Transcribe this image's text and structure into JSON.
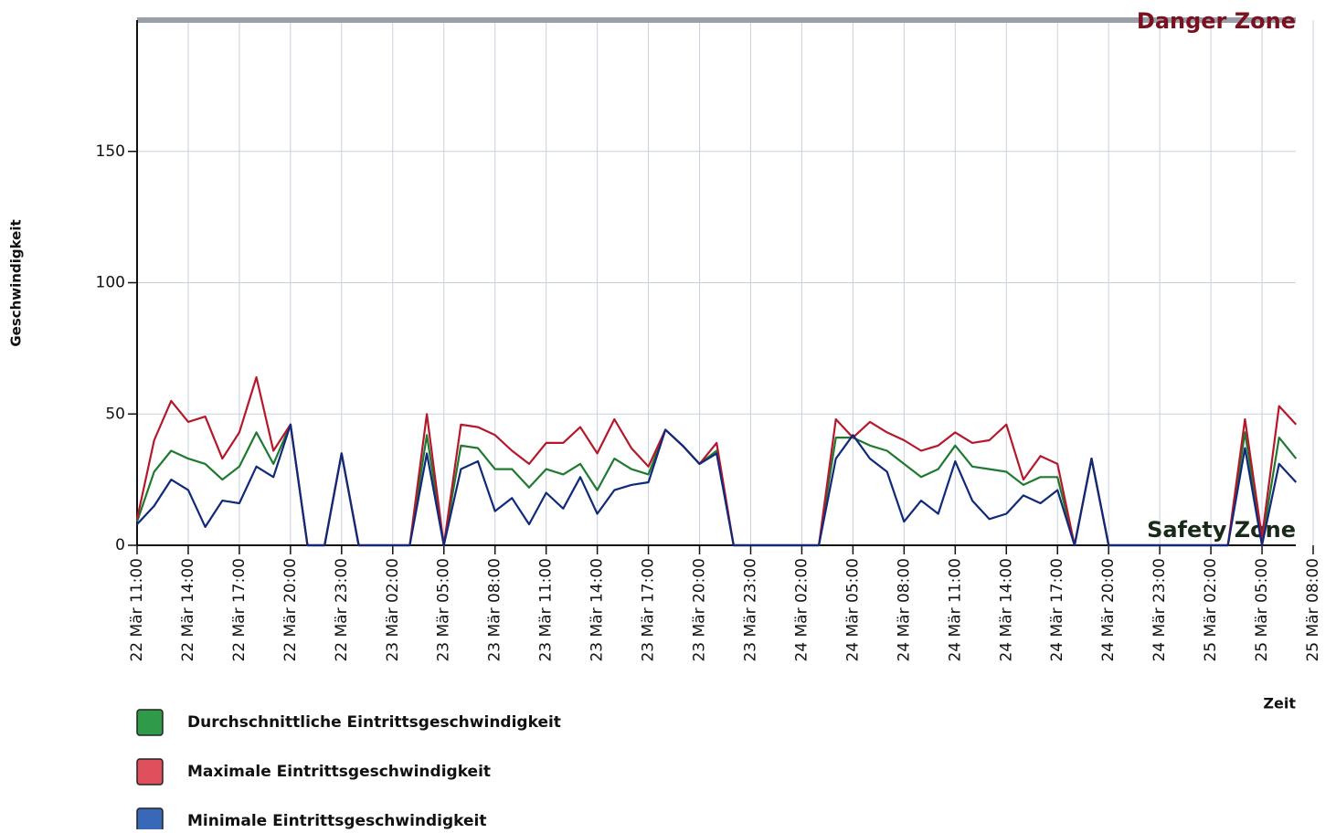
{
  "chart_data": {
    "type": "line",
    "y_label": "Geschwindigkeit",
    "x_label": "Zeit",
    "categories": [
      "22 Mär 11:00",
      null,
      null,
      "22 Mär 14:00",
      null,
      null,
      "22 Mär 17:00",
      null,
      null,
      "22 Mär 20:00",
      null,
      null,
      "22 Mär 23:00",
      null,
      null,
      "23 Mär 02:00",
      null,
      null,
      "23 Mär 05:00",
      null,
      null,
      "23 Mär 08:00",
      null,
      null,
      "23 Mär 11:00",
      null,
      null,
      "23 Mär 14:00",
      null,
      null,
      "23 Mär 17:00",
      null,
      null,
      "23 Mär 20:00",
      null,
      null,
      "23 Mär 23:00",
      null,
      null,
      "24 Mär 02:00",
      null,
      null,
      "24 Mär 05:00",
      null,
      null,
      "24 Mär 08:00",
      null,
      null,
      "24 Mär 11:00",
      null,
      null,
      "24 Mär 14:00",
      null,
      null,
      "24 Mär 17:00",
      null,
      null,
      "24 Mär 20:00",
      null,
      null,
      "24 Mär 23:00",
      null,
      null,
      "25 Mär 02:00",
      null,
      null,
      "25 Mär 05:00",
      null,
      null,
      "25 Mär 08:00"
    ],
    "series": [
      {
        "name": "Durchschnittliche Eintrittsgeschwindigkeit",
        "color": "#1f7a30",
        "swatch": "#2f9a48",
        "values": [
          9,
          28,
          36,
          33,
          31,
          25,
          30,
          43,
          31,
          46,
          0,
          0,
          35,
          0,
          0,
          0,
          0,
          42,
          0,
          38,
          37,
          29,
          29,
          22,
          29,
          27,
          31,
          21,
          33,
          29,
          27,
          44,
          38,
          31,
          36,
          0,
          0,
          0,
          0,
          0,
          0,
          41,
          41,
          38,
          36,
          31,
          26,
          29,
          38,
          30,
          29,
          28,
          23,
          26,
          26,
          0,
          33,
          0,
          0,
          0,
          0,
          0,
          0,
          0,
          0,
          43,
          1,
          41,
          33,
          null
        ]
      },
      {
        "name": "Maximale Eintrittsgeschwindigkeit",
        "color": "#b5182b",
        "swatch": "#e0505c",
        "values": [
          10,
          40,
          55,
          47,
          49,
          33,
          43,
          64,
          36,
          46,
          0,
          0,
          35,
          0,
          0,
          0,
          0,
          50,
          0,
          46,
          45,
          42,
          36,
          31,
          39,
          39,
          45,
          35,
          48,
          37,
          30,
          44,
          38,
          31,
          39,
          0,
          0,
          0,
          0,
          0,
          0,
          48,
          41,
          47,
          43,
          40,
          36,
          38,
          43,
          39,
          40,
          46,
          25,
          34,
          31,
          0,
          33,
          0,
          0,
          0,
          0,
          0,
          0,
          0,
          0,
          48,
          3,
          53,
          46,
          null
        ]
      },
      {
        "name": "Minimale Eintrittsgeschwindigkeit",
        "color": "#10297a",
        "swatch": "#3a68b8",
        "values": [
          8,
          15,
          25,
          21,
          7,
          17,
          16,
          30,
          26,
          46,
          0,
          0,
          35,
          0,
          0,
          0,
          0,
          35,
          0,
          29,
          32,
          13,
          18,
          8,
          20,
          14,
          26,
          12,
          21,
          23,
          24,
          44,
          38,
          31,
          35,
          0,
          0,
          0,
          0,
          0,
          0,
          33,
          42,
          33,
          28,
          9,
          17,
          12,
          32,
          17,
          10,
          12,
          19,
          16,
          21,
          0,
          33,
          0,
          0,
          0,
          0,
          0,
          0,
          0,
          0,
          37,
          0,
          31,
          24,
          null
        ]
      }
    ],
    "zones": [
      {
        "label": "Danger Zone",
        "value": 200,
        "color": "#7a1020"
      },
      {
        "label": "Safety Zone",
        "value": 0,
        "color": "#1a2a1a"
      }
    ],
    "ylim": [
      0,
      200
    ],
    "yticks": [
      0,
      50,
      100,
      150
    ],
    "grid": true
  }
}
